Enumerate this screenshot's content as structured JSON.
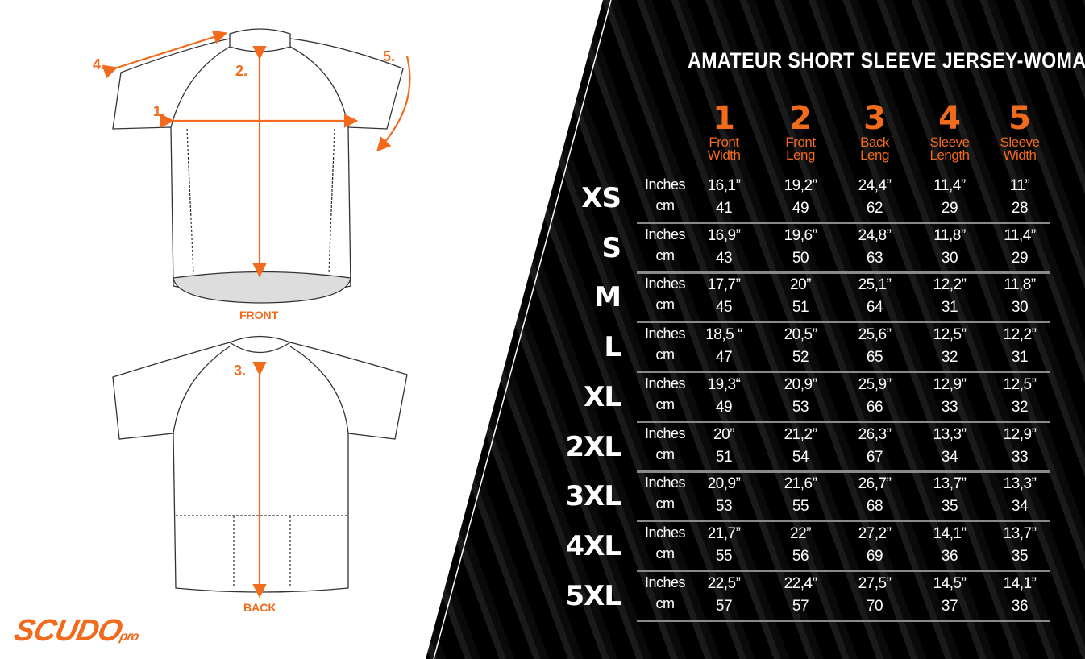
{
  "title": "AMATEUR SHORT SLEEVE JERSEY-WOMAN",
  "accent_color": "#f26b1d",
  "columns": [
    {
      "num": "1",
      "label1": "Front",
      "label2": "Width"
    },
    {
      "num": "2",
      "label1": "Front",
      "label2": "Leng"
    },
    {
      "num": "3",
      "label1": "Back",
      "label2": "Leng"
    },
    {
      "num": "4",
      "label1": "Sleeve",
      "label2": "Length"
    },
    {
      "num": "5",
      "label1": "Sleeve",
      "label2": "Width"
    }
  ],
  "units": {
    "inches": "Inches",
    "cm": "cm"
  },
  "rows": [
    {
      "size": "XS",
      "inches": [
        "16,1”",
        "19,2”",
        "24,4”",
        "11,4”",
        "11”"
      ],
      "cm": [
        "41",
        "49",
        "62",
        "29",
        "28"
      ]
    },
    {
      "size": "S",
      "inches": [
        "16,9”",
        "19,6”",
        "24,8”",
        "11,8”",
        "11,4”"
      ],
      "cm": [
        "43",
        "50",
        "63",
        "30",
        "29"
      ]
    },
    {
      "size": "M",
      "inches": [
        "17,7”",
        "20”",
        "25,1”",
        "12,2”",
        "11,8”"
      ],
      "cm": [
        "45",
        "51",
        "64",
        "31",
        "30"
      ]
    },
    {
      "size": "L",
      "inches": [
        "18,5 “",
        "20,5”",
        "25,6”",
        "12,5”",
        "12,2”"
      ],
      "cm": [
        "47",
        "52",
        "65",
        "32",
        "31"
      ]
    },
    {
      "size": "XL",
      "inches": [
        "19,3“",
        "20,9”",
        "25,9”",
        "12,9”",
        "12,5”"
      ],
      "cm": [
        "49",
        "53",
        "66",
        "33",
        "32"
      ]
    },
    {
      "size": "2XL",
      "inches": [
        "20”",
        "21,2”",
        "26,3”",
        "13,3”",
        "12,9”"
      ],
      "cm": [
        "51",
        "54",
        "67",
        "34",
        "33"
      ]
    },
    {
      "size": "3XL",
      "inches": [
        "20,9”",
        "21,6”",
        "26,7”",
        "13,7”",
        "13,3”"
      ],
      "cm": [
        "53",
        "55",
        "68",
        "35",
        "34"
      ]
    },
    {
      "size": "4XL",
      "inches": [
        "21,7”",
        "22”",
        "27,2”",
        "14,1”",
        "13,7”"
      ],
      "cm": [
        "55",
        "56",
        "69",
        "36",
        "35"
      ]
    },
    {
      "size": "5XL",
      "inches": [
        "22,5”",
        "22,4”",
        "27,5”",
        "14,5”",
        "14,1”"
      ],
      "cm": [
        "57",
        "57",
        "70",
        "37",
        "36"
      ]
    }
  ],
  "diagram": {
    "front_label": "FRONT",
    "back_label": "BACK",
    "markers": [
      "1.",
      "2.",
      "3.",
      "4.",
      "5."
    ]
  },
  "logo": {
    "text": "SCUDO",
    "suffix": "pro"
  }
}
